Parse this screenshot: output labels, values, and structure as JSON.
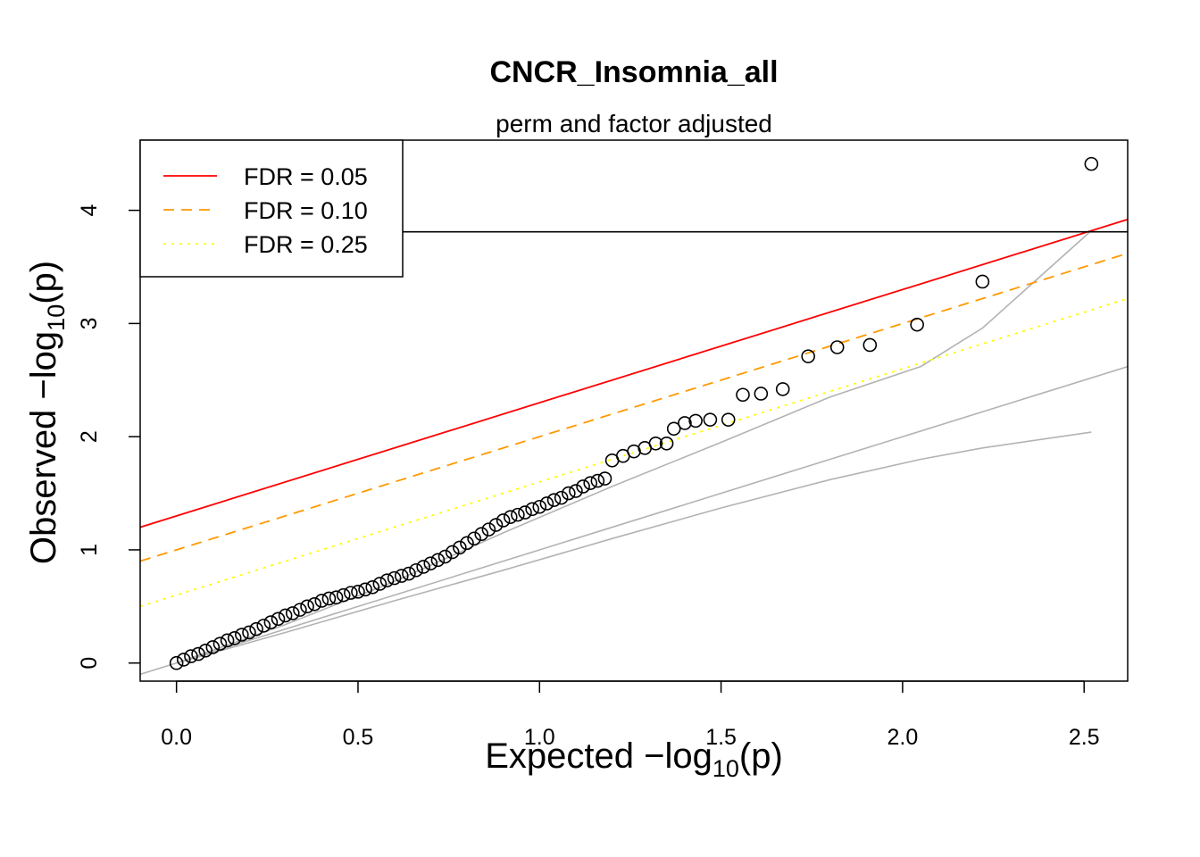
{
  "chart_data": {
    "type": "scatter",
    "title": "CNCR_Insomnia_all",
    "subtitle": "perm and factor adjusted",
    "xlabel": {
      "prefix": "Expected  −log",
      "subscript": "10",
      "suffix": "(p)"
    },
    "ylabel": {
      "prefix": "Observed  −log",
      "subscript": "10",
      "suffix": "(p)"
    },
    "xlim": [
      -0.1,
      2.62
    ],
    "ylim": [
      -0.16,
      4.62
    ],
    "xticks": [
      "0.0",
      "0.5",
      "1.0",
      "1.5",
      "2.0",
      "2.5"
    ],
    "yticks": [
      "0",
      "1",
      "2",
      "3",
      "4"
    ],
    "grid": false,
    "legend_position": "top-left",
    "reference_hline": 3.81,
    "fdr_lines": [
      {
        "label": "FDR = 0.05",
        "color": "#ff0000",
        "style": "solid",
        "intercept": 1.3,
        "slope": 1.0
      },
      {
        "label": "FDR = 0.10",
        "color": "#ff9900",
        "style": "dashed",
        "intercept": 1.0,
        "slope": 1.0
      },
      {
        "label": "FDR = 0.25",
        "color": "#ffff00",
        "style": "dotted",
        "intercept": 0.6,
        "slope": 1.0
      }
    ],
    "null_curves": {
      "color": "#b3b3b3",
      "identity": [
        [
          -0.1,
          -0.1
        ],
        [
          2.62,
          2.62
        ]
      ],
      "upper": [
        [
          0,
          0
        ],
        [
          0.3,
          0.34
        ],
        [
          0.6,
          0.72
        ],
        [
          0.9,
          1.15
        ],
        [
          1.2,
          1.56
        ],
        [
          1.5,
          1.95
        ],
        [
          1.8,
          2.35
        ],
        [
          2.05,
          2.62
        ],
        [
          2.22,
          2.96
        ],
        [
          2.52,
          3.82
        ]
      ],
      "lower": [
        [
          0,
          0
        ],
        [
          0.3,
          0.27
        ],
        [
          0.6,
          0.55
        ],
        [
          0.9,
          0.82
        ],
        [
          1.2,
          1.1
        ],
        [
          1.5,
          1.37
        ],
        [
          1.8,
          1.62
        ],
        [
          2.05,
          1.8
        ],
        [
          2.22,
          1.9
        ],
        [
          2.52,
          2.04
        ]
      ]
    },
    "points": {
      "x": [
        0.0,
        0.02,
        0.04,
        0.06,
        0.08,
        0.1,
        0.12,
        0.14,
        0.16,
        0.18,
        0.2,
        0.22,
        0.24,
        0.26,
        0.28,
        0.3,
        0.32,
        0.34,
        0.36,
        0.38,
        0.4,
        0.42,
        0.44,
        0.46,
        0.48,
        0.5,
        0.52,
        0.54,
        0.56,
        0.58,
        0.6,
        0.62,
        0.64,
        0.66,
        0.68,
        0.7,
        0.72,
        0.74,
        0.76,
        0.78,
        0.8,
        0.82,
        0.84,
        0.86,
        0.88,
        0.9,
        0.92,
        0.94,
        0.96,
        0.98,
        1.0,
        1.02,
        1.04,
        1.06,
        1.08,
        1.1,
        1.12,
        1.14,
        1.16,
        1.18,
        1.2,
        1.23,
        1.26,
        1.29,
        1.32,
        1.35,
        1.37,
        1.4,
        1.43,
        1.47,
        1.52,
        1.56,
        1.61,
        1.67,
        1.74,
        1.82,
        1.91,
        2.04,
        2.22,
        2.52
      ],
      "y": [
        0.0,
        0.03,
        0.06,
        0.08,
        0.11,
        0.14,
        0.17,
        0.2,
        0.22,
        0.25,
        0.27,
        0.3,
        0.33,
        0.36,
        0.39,
        0.42,
        0.44,
        0.47,
        0.5,
        0.52,
        0.55,
        0.57,
        0.58,
        0.6,
        0.62,
        0.63,
        0.65,
        0.67,
        0.7,
        0.73,
        0.75,
        0.77,
        0.79,
        0.82,
        0.85,
        0.88,
        0.91,
        0.94,
        0.98,
        1.02,
        1.06,
        1.1,
        1.14,
        1.18,
        1.22,
        1.26,
        1.29,
        1.31,
        1.33,
        1.36,
        1.38,
        1.41,
        1.44,
        1.46,
        1.5,
        1.52,
        1.56,
        1.59,
        1.61,
        1.63,
        1.79,
        1.83,
        1.87,
        1.9,
        1.94,
        1.94,
        2.07,
        2.12,
        2.14,
        2.15,
        2.15,
        2.37,
        2.38,
        2.42,
        2.71,
        2.79,
        2.81,
        2.99,
        3.37,
        4.41
      ]
    }
  }
}
